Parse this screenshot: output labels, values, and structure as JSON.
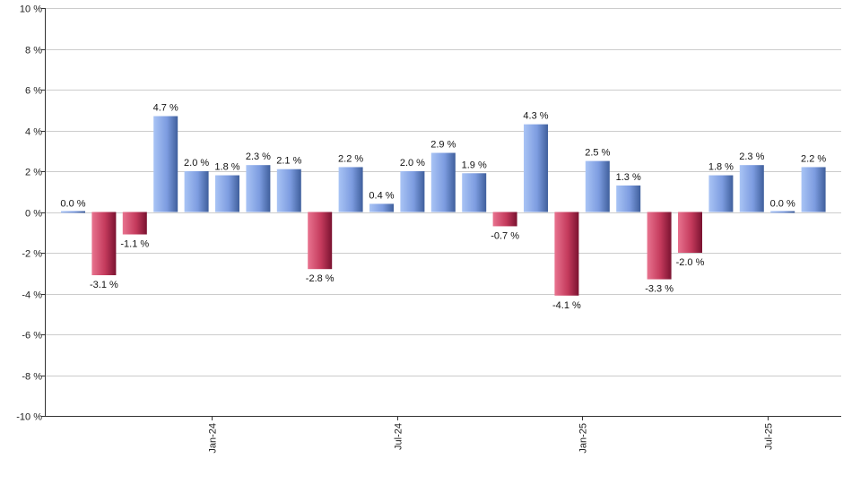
{
  "chart_data": {
    "type": "bar",
    "title": "",
    "xlabel": "",
    "ylabel": "",
    "ylim": [
      -10,
      10
    ],
    "y_ticks": [
      10,
      8,
      6,
      4,
      2,
      0,
      -2,
      -4,
      -6,
      -8,
      -10
    ],
    "y_tick_suffix": " %",
    "x_tick_labels": [
      {
        "label": "Jan-24",
        "after_index": 4
      },
      {
        "label": "Jul-24",
        "after_index": 10
      },
      {
        "label": "Jan-25",
        "after_index": 16
      },
      {
        "label": "Jul-25",
        "after_index": 22
      }
    ],
    "values": [
      0.0,
      -3.1,
      -1.1,
      4.7,
      2.0,
      1.8,
      2.3,
      2.1,
      -2.8,
      2.2,
      0.4,
      2.0,
      2.9,
      1.9,
      -0.7,
      4.3,
      -4.1,
      2.5,
      1.3,
      -3.3,
      -2.0,
      1.8,
      2.3,
      0.0,
      2.2
    ],
    "data_labels": [
      "0.0 %",
      "-3.1 %",
      "-1.1 %",
      "4.7 %",
      "2.0 %",
      "1.8 %",
      "2.3 %",
      "2.1 %",
      "-2.8 %",
      "2.2 %",
      "0.4 %",
      "2.0 %",
      "2.9 %",
      "1.9 %",
      "-0.7 %",
      "4.3 %",
      "-4.1 %",
      "2.5 %",
      "1.3 %",
      "-3.3 %",
      "-2.0 %",
      "1.8 %",
      "2.3 %",
      "0.0 %",
      "2.2 %"
    ],
    "grid": true,
    "colors": {
      "positive_light": "#a9c4f5",
      "positive_dark": "#3f5f9c",
      "negative_light": "#e8738f",
      "negative_dark": "#7a1230",
      "grid": "#cccccc",
      "axis": "#333333"
    }
  }
}
